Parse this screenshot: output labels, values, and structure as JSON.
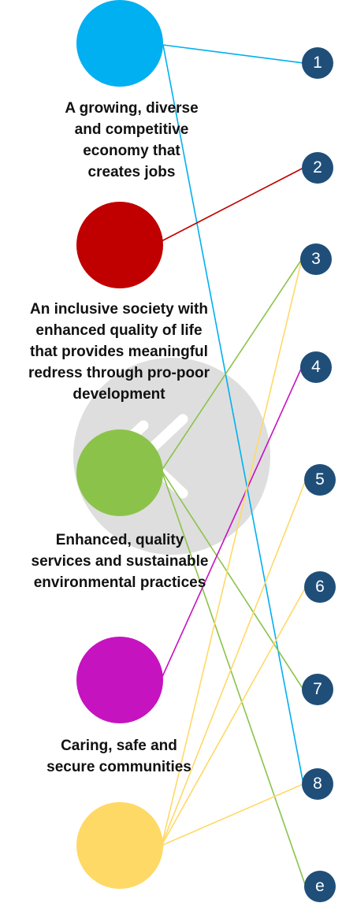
{
  "colors": {
    "goal_1": "#00b0f0",
    "goal_2": "#c00000",
    "goal_3": "#8bc34a",
    "goal_4": "#c513c0",
    "goal_5": "#ffd966",
    "badge": "#1f4e79",
    "watermark": "#dedede"
  },
  "goals": [
    {
      "lines": [
        "A growing, diverse",
        "and competitive",
        "economy that",
        "creates jobs"
      ]
    },
    {
      "lines": [
        "An inclusive society with",
        "enhanced quality of life",
        "that provides meaningful",
        "redress through pro-poor",
        "development"
      ]
    },
    {
      "lines": [
        "Enhanced, quality",
        "services and sustainable",
        "environmental practices"
      ]
    },
    {
      "lines": [
        "Caring, safe and",
        "secure communities"
      ]
    },
    {
      "lines": []
    }
  ],
  "badges": [
    "1",
    "2",
    "3",
    "4",
    "5",
    "6",
    "7",
    "8",
    "e"
  ],
  "links": [
    {
      "goal": 0,
      "badge": 0
    },
    {
      "goal": 0,
      "badge": 7
    },
    {
      "goal": 1,
      "badge": 1
    },
    {
      "goal": 2,
      "badge": 2
    },
    {
      "goal": 2,
      "badge": 6
    },
    {
      "goal": 2,
      "badge": 8
    },
    {
      "goal": 3,
      "badge": 3
    },
    {
      "goal": 4,
      "badge": 2
    },
    {
      "goal": 4,
      "badge": 4
    },
    {
      "goal": 4,
      "badge": 5
    },
    {
      "goal": 4,
      "badge": 7
    }
  ]
}
